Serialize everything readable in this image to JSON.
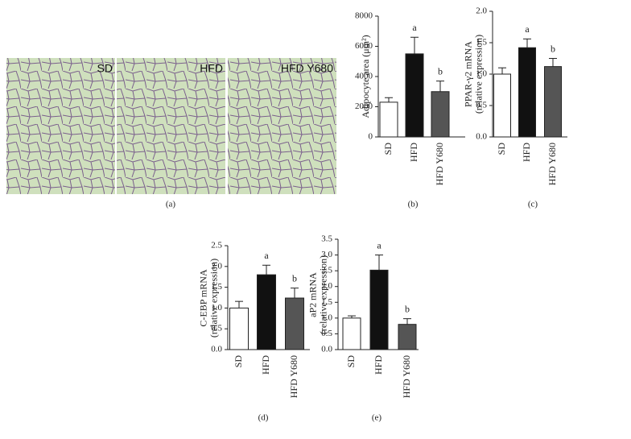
{
  "figure": {
    "caption": "(a)",
    "image_labels": [
      "SD",
      "HFD",
      "HFD Y680"
    ]
  },
  "chart_data": [
    {
      "type": "bar",
      "caption": "(b)",
      "ylabel": [
        "Adipocyte area (μm²)"
      ],
      "categories": [
        "SD",
        "HFD",
        "HFD Y680"
      ],
      "series": [
        {
          "colors": [
            "#ffffff",
            "#111111",
            "#555555"
          ],
          "values": [
            2300,
            5500,
            3000
          ],
          "errors": [
            300,
            1100,
            700
          ]
        }
      ],
      "letters": [
        null,
        "a",
        "b"
      ],
      "ylim": [
        0,
        8000
      ],
      "yticks": [
        0,
        2000,
        4000,
        6000,
        8000
      ]
    },
    {
      "type": "bar",
      "caption": "(c)",
      "ylabel": [
        "PPAR-γ2 mRNA",
        "(relative expression)"
      ],
      "categories": [
        "SD",
        "HFD",
        "HFD Y680"
      ],
      "series": [
        {
          "colors": [
            "#ffffff",
            "#111111",
            "#555555"
          ],
          "values": [
            1.0,
            1.42,
            1.12
          ],
          "errors": [
            0.1,
            0.14,
            0.13
          ]
        }
      ],
      "letters": [
        null,
        "a",
        "b"
      ],
      "ylim": [
        0,
        2.0
      ],
      "yticks": [
        {
          "value": 0,
          "label": "0.0"
        },
        0.5,
        {
          "value": 1,
          "label": "1.0"
        },
        1.5,
        {
          "value": 2,
          "label": "2.0"
        }
      ]
    },
    {
      "type": "bar",
      "caption": "(d)",
      "ylabel": [
        "C-EBP mRNA",
        "(relative expression)"
      ],
      "categories": [
        "SD",
        "HFD",
        "HFD Y680"
      ],
      "series": [
        {
          "colors": [
            "#ffffff",
            "#111111",
            "#555555"
          ],
          "values": [
            1.0,
            1.8,
            1.24
          ],
          "errors": [
            0.16,
            0.23,
            0.24
          ]
        }
      ],
      "letters": [
        null,
        "a",
        "b"
      ],
      "ylim": [
        0,
        2.5
      ],
      "yticks": [
        {
          "value": 0,
          "label": "0.0"
        },
        0.5,
        {
          "value": 1,
          "label": "1.0"
        },
        1.5,
        {
          "value": 2,
          "label": "2.0"
        },
        2.5
      ]
    },
    {
      "type": "bar",
      "caption": "(e)",
      "ylabel": [
        "aP2 mRNA",
        "(relative expression)"
      ],
      "categories": [
        "SD",
        "HFD",
        "HFD Y680"
      ],
      "series": [
        {
          "colors": [
            "#ffffff",
            "#111111",
            "#555555"
          ],
          "values": [
            1.0,
            2.52,
            0.8
          ],
          "errors": [
            0.07,
            0.48,
            0.18
          ]
        }
      ],
      "letters": [
        null,
        "a",
        "b"
      ],
      "ylim": [
        0,
        3.5
      ],
      "yticks": [
        {
          "value": 0,
          "label": "0.0"
        },
        0.5,
        {
          "value": 1,
          "label": "1.0"
        },
        1.5,
        {
          "value": 2,
          "label": "2.0"
        },
        2.5,
        {
          "value": 3,
          "label": "3.0"
        },
        3.5
      ]
    }
  ]
}
